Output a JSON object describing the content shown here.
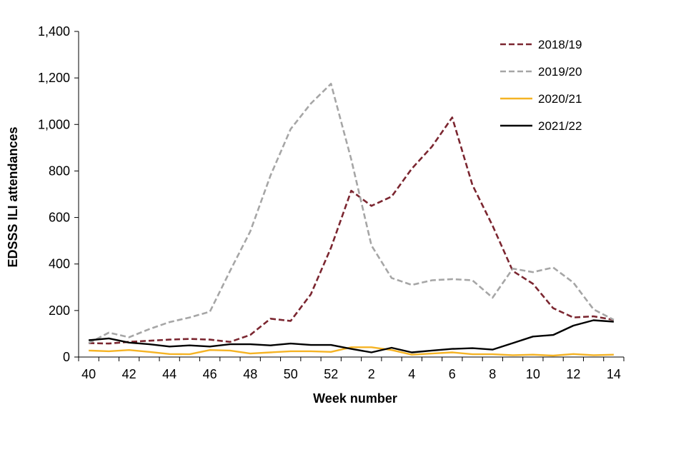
{
  "chart_data": {
    "type": "line",
    "title": "",
    "xlabel": "Week number",
    "ylabel": "EDSSS ILI  attendances",
    "ylim": [
      0,
      1400
    ],
    "yticks": [
      0,
      200,
      400,
      600,
      800,
      1000,
      1200,
      1400
    ],
    "ytick_labels": [
      "0",
      "200",
      "400",
      "600",
      "800",
      "1,000",
      "1,200",
      "1,400"
    ],
    "x": [
      "40",
      "41",
      "42",
      "43",
      "44",
      "45",
      "46",
      "47",
      "48",
      "49",
      "50",
      "51",
      "52",
      "1",
      "2",
      "3",
      "4",
      "5",
      "6",
      "7",
      "8",
      "9",
      "10",
      "11",
      "12",
      "13",
      "14"
    ],
    "xtick_labels": [
      "40",
      "42",
      "44",
      "46",
      "48",
      "50",
      "52",
      "2",
      "4",
      "6",
      "8",
      "10",
      "12",
      "14"
    ],
    "grid": false,
    "legend_position": "top-right",
    "series": [
      {
        "name": "2018/19",
        "color": "#7B2630",
        "style": "dashed",
        "values": [
          60,
          58,
          65,
          70,
          75,
          78,
          75,
          65,
          95,
          165,
          155,
          270,
          470,
          715,
          650,
          690,
          810,
          905,
          1030,
          740,
          565,
          370,
          315,
          210,
          170,
          175,
          160
        ]
      },
      {
        "name": "2019/20",
        "color": "#A6A6A6",
        "style": "dashed",
        "values": [
          60,
          105,
          85,
          120,
          150,
          170,
          195,
          370,
          540,
          780,
          980,
          1090,
          1175,
          850,
          480,
          340,
          310,
          330,
          335,
          330,
          255,
          380,
          365,
          385,
          320,
          205,
          160
        ]
      },
      {
        "name": "2020/21",
        "color": "#F5B324",
        "style": "solid",
        "values": [
          28,
          25,
          30,
          22,
          13,
          12,
          30,
          28,
          15,
          20,
          25,
          25,
          22,
          42,
          42,
          30,
          10,
          15,
          20,
          12,
          12,
          8,
          10,
          6,
          13,
          8,
          10
        ]
      },
      {
        "name": "2021/22",
        "color": "#000000",
        "style": "solid",
        "values": [
          72,
          80,
          62,
          55,
          45,
          50,
          45,
          55,
          55,
          50,
          58,
          52,
          52,
          35,
          20,
          40,
          20,
          28,
          35,
          38,
          32,
          60,
          88,
          95,
          135,
          158,
          152
        ]
      }
    ]
  }
}
